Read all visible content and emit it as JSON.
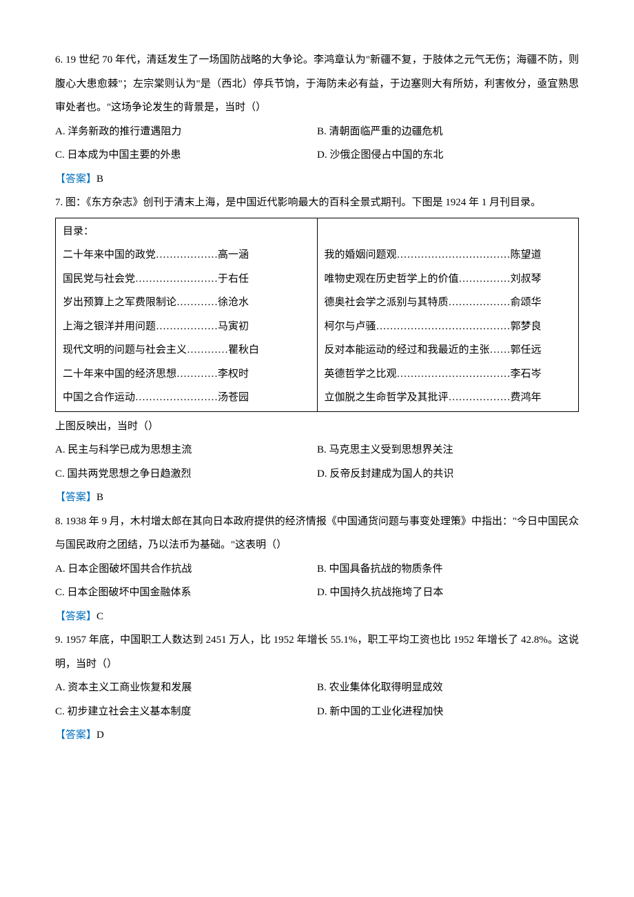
{
  "q6": {
    "text": "6. 19 世纪 70 年代，清廷发生了一场国防战略的大争论。李鸿章认为\"新疆不复，于肢体之元气无伤；海疆不防，则腹心大患愈棘\"；左宗棠则认为\"是（西北）停兵节饷，于海防未必有益，于边塞则大有所妨，利害攸分，亟宜熟思审处者也。\"这场争论发生的背景是，当时（）",
    "options": {
      "A": "A.  洋务新政的推行遭遇阻力",
      "B": "B.  清朝面临严重的边疆危机",
      "C": "C.  日本成为中国主要的外患",
      "D": "D.  沙俄企图侵占中国的东北"
    },
    "answer_label": "【答案】",
    "answer": "B"
  },
  "q7": {
    "text": "7.  图：《东方杂志》创刊于清末上海，是中国近代影响最大的百科全景式期刊。下图是 1924 年 1 月刊目录。",
    "toc_header": "目录：",
    "toc_left": [
      "二十年来中国的政党………………高一涵",
      "国民党与社会党……………………于右任",
      "岁出预算上之军费限制论…………徐沧水",
      "上海之银洋并用问题………………马寅初",
      "现代文明的问题与社会主义…………瞿秋白",
      "二十年来中国的经济思想…………李权时",
      "中国之合作运动……………………汤苍园"
    ],
    "toc_right": [
      "我的婚姻问题观……………………………陈望道",
      "唯物史观在历史哲学上的价值……………刘叔琴",
      "德奥社会学之派别与其特质………………俞颂华",
      "柯尔与卢骚…………………………………郭梦良",
      "反对本能运动的经过和我最近的主张……郭任远",
      "英德哲学之比观……………………………李石岑",
      "立伽脱之生命哲学及其批评………………费鸿年"
    ],
    "subtext": "上图反映出，当时（）",
    "options": {
      "A": "A.  民主与科学已成为思想主流",
      "B": "B.  马克思主义受到思想界关注",
      "C": "C.  国共两党思想之争日趋激烈",
      "D": "D.  反帝反封建成为国人的共识"
    },
    "answer_label": "【答案】",
    "answer": "B"
  },
  "q8": {
    "text": "8. 1938 年 9 月，木村增太郎在其向日本政府提供的经济情报《中国通货问题与事变处理策》中指出：\"今日中国民众与国民政府之团结，乃以法币为基础。\"这表明（）",
    "options": {
      "A": "A.  日本企图破坏国共合作抗战",
      "B": "B.  中国具备抗战的物质条件",
      "C": "C.  日本企图破坏中国金融体系",
      "D": "D.  中国持久抗战拖垮了日本"
    },
    "answer_label": "【答案】",
    "answer": "C"
  },
  "q9": {
    "text": "9. 1957 年底，中国职工人数达到 2451 万人，比 1952 年增长 55.1%，职工平均工资也比 1952 年增长了 42.8%。这说明，当时（）",
    "options": {
      "A": "A.  资本主义工商业恢复和发展",
      "B": "B.  农业集体化取得明显成效",
      "C": "C.  初步建立社会主义基本制度",
      "D": "D.  新中国的工业化进程加快"
    },
    "answer_label": "【答案】",
    "answer": "D"
  }
}
